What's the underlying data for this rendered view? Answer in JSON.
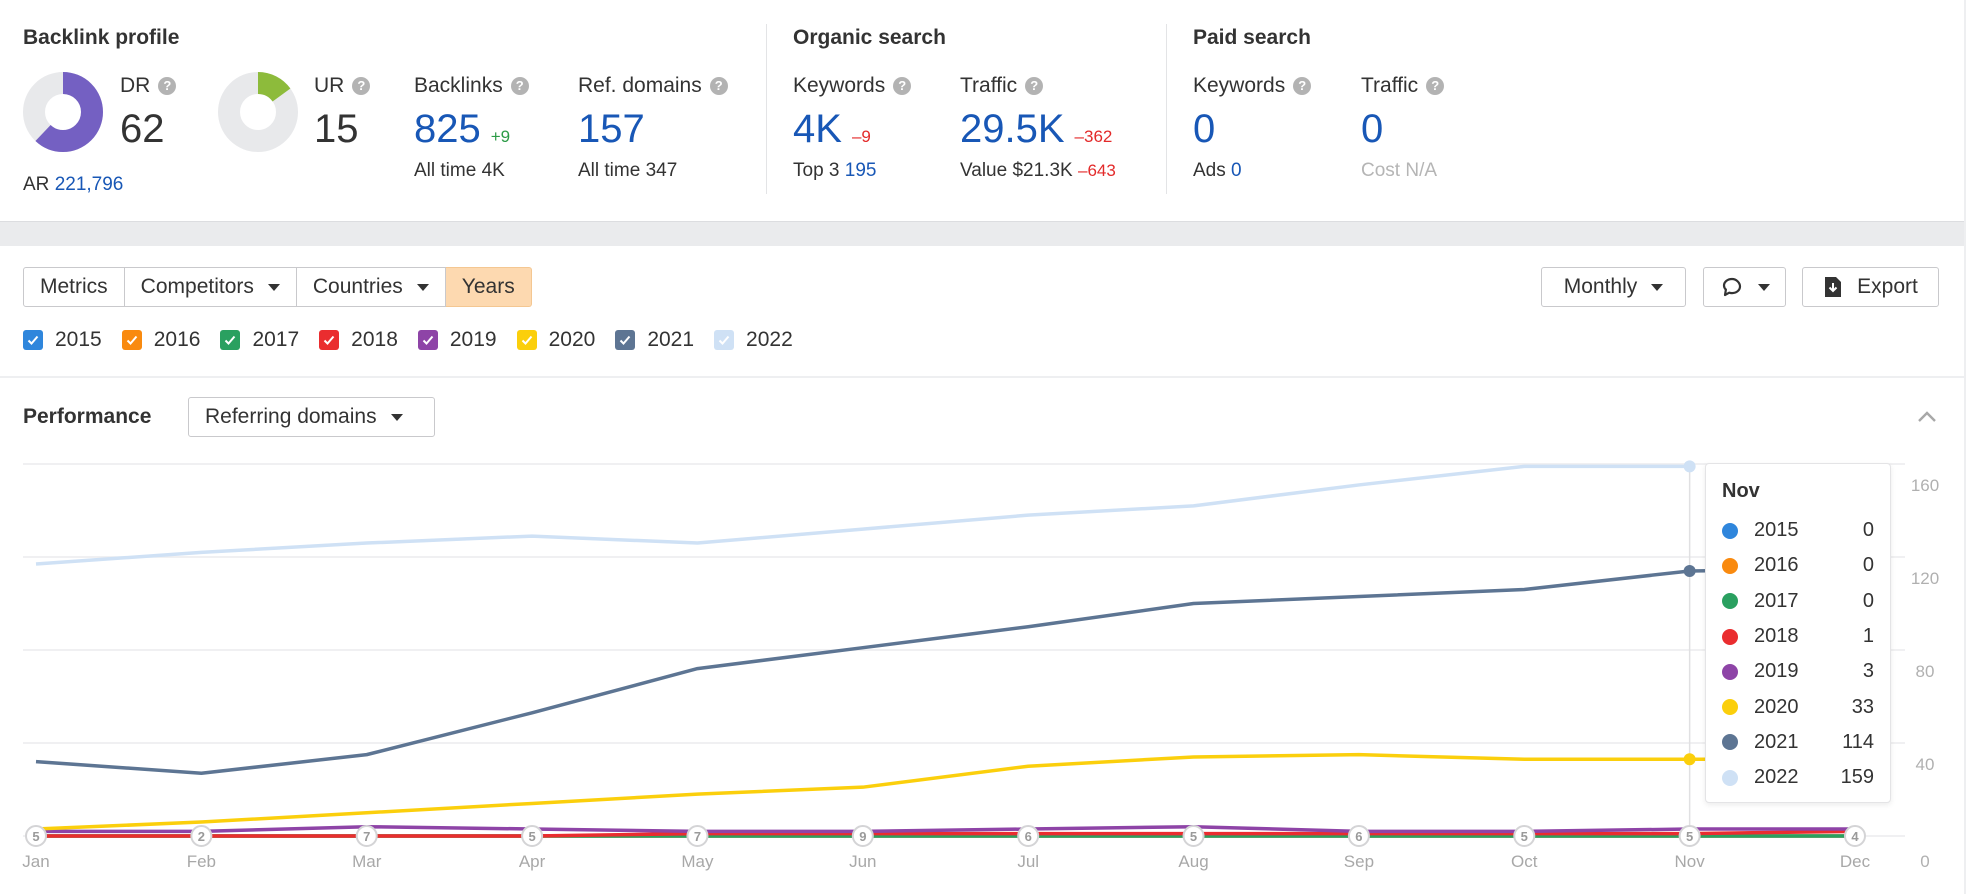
{
  "backlink_profile": {
    "title": "Backlink profile",
    "dr": {
      "label": "DR",
      "value": "62",
      "fraction": 0.62,
      "color": "#7460c2"
    },
    "ar": {
      "label": "AR",
      "value": "221,796"
    },
    "ur": {
      "label": "UR",
      "value": "15",
      "fraction": 0.15,
      "color": "#8dbb3b"
    },
    "backlinks": {
      "label": "Backlinks",
      "value": "825",
      "delta": "+9",
      "sub_label": "All time",
      "sub_value": "4K"
    },
    "ref_domains": {
      "label": "Ref. domains",
      "value": "157",
      "sub_label": "All time",
      "sub_value": "347"
    }
  },
  "organic_search": {
    "title": "Organic search",
    "keywords": {
      "label": "Keywords",
      "value": "4K",
      "delta": "–9",
      "sub_label": "Top 3",
      "sub_value": "195"
    },
    "traffic": {
      "label": "Traffic",
      "value": "29.5K",
      "delta": "–362",
      "sub_label": "Value",
      "sub_value": "$21.3K",
      "sub_delta": "–643"
    }
  },
  "paid_search": {
    "title": "Paid search",
    "keywords": {
      "label": "Keywords",
      "value": "0",
      "sub_label": "Ads",
      "sub_value": "0"
    },
    "traffic": {
      "label": "Traffic",
      "value": "0",
      "sub_label": "Cost",
      "sub_value": "N/A"
    }
  },
  "help_glyph": "?",
  "toolbar": {
    "tabs": [
      {
        "label": "Metrics",
        "dropdown": false,
        "active": false
      },
      {
        "label": "Competitors",
        "dropdown": true,
        "active": false
      },
      {
        "label": "Countries",
        "dropdown": true,
        "active": false
      },
      {
        "label": "Years",
        "dropdown": false,
        "active": true
      }
    ],
    "interval": "Monthly",
    "export_label": "Export",
    "comment_icon": "speech-bubble-icon"
  },
  "years": [
    {
      "label": "2015",
      "color": "#2f86dc",
      "checked": true
    },
    {
      "label": "2016",
      "color": "#f98a0f",
      "checked": true
    },
    {
      "label": "2017",
      "color": "#2aa060",
      "checked": true
    },
    {
      "label": "2018",
      "color": "#ea2d2f",
      "checked": true
    },
    {
      "label": "2019",
      "color": "#8e44a7",
      "checked": true
    },
    {
      "label": "2020",
      "color": "#fbcf0c",
      "checked": true
    },
    {
      "label": "2021",
      "color": "#5d7593",
      "checked": true
    },
    {
      "label": "2022",
      "color": "#cfe1f5",
      "checked": true
    }
  ],
  "performance": {
    "title": "Performance",
    "metric": "Referring domains"
  },
  "tooltip": {
    "title": "Nov",
    "rows": [
      {
        "year": "2015",
        "value": "0"
      },
      {
        "year": "2016",
        "value": "0"
      },
      {
        "year": "2017",
        "value": "0"
      },
      {
        "year": "2018",
        "value": "1"
      },
      {
        "year": "2019",
        "value": "3"
      },
      {
        "year": "2020",
        "value": "33"
      },
      {
        "year": "2021",
        "value": "114"
      },
      {
        "year": "2022",
        "value": "159"
      }
    ]
  },
  "chart_data": {
    "type": "line",
    "title": "Performance — Referring domains",
    "xlabel": "",
    "ylabel": "",
    "categories": [
      "Jan",
      "Feb",
      "Mar",
      "Apr",
      "May",
      "Jun",
      "Jul",
      "Aug",
      "Sep",
      "Oct",
      "Nov",
      "Dec"
    ],
    "y_ticks": [
      0,
      40,
      80,
      120,
      160
    ],
    "ylim": [
      0,
      160
    ],
    "grid": true,
    "y_axis_side": "right",
    "annotation_markers": [
      "5",
      "2",
      "7",
      "5",
      "7",
      "9",
      "6",
      "5",
      "6",
      "5",
      "5",
      "4"
    ],
    "highlight_category": "Nov",
    "series": [
      {
        "name": "2015",
        "color": "#2f86dc",
        "values": [
          0,
          0,
          0,
          0,
          0,
          0,
          0,
          0,
          0,
          0,
          0,
          0
        ]
      },
      {
        "name": "2016",
        "color": "#f98a0f",
        "values": [
          0,
          0,
          0,
          0,
          0,
          0,
          0,
          0,
          0,
          0,
          0,
          0
        ]
      },
      {
        "name": "2017",
        "color": "#2aa060",
        "values": [
          0,
          0,
          0,
          0,
          0,
          0,
          0,
          0,
          0,
          0,
          0,
          0
        ]
      },
      {
        "name": "2018",
        "color": "#ea2d2f",
        "values": [
          0,
          0,
          0,
          0,
          1,
          1,
          1,
          1,
          1,
          1,
          1,
          2
        ]
      },
      {
        "name": "2019",
        "color": "#8e44a7",
        "values": [
          2,
          2,
          4,
          3,
          2,
          2,
          3,
          4,
          2,
          2,
          3,
          3
        ]
      },
      {
        "name": "2020",
        "color": "#fbcf0c",
        "values": [
          3,
          6,
          10,
          14,
          18,
          21,
          30,
          34,
          35,
          33,
          33,
          33
        ]
      },
      {
        "name": "2021",
        "color": "#5d7593",
        "values": [
          32,
          27,
          35,
          53,
          72,
          81,
          90,
          100,
          103,
          106,
          114,
          115
        ]
      },
      {
        "name": "2022",
        "color": "#cfe1f5",
        "values": [
          117,
          122,
          126,
          129,
          126,
          132,
          138,
          142,
          151,
          159,
          159,
          null
        ]
      }
    ]
  }
}
